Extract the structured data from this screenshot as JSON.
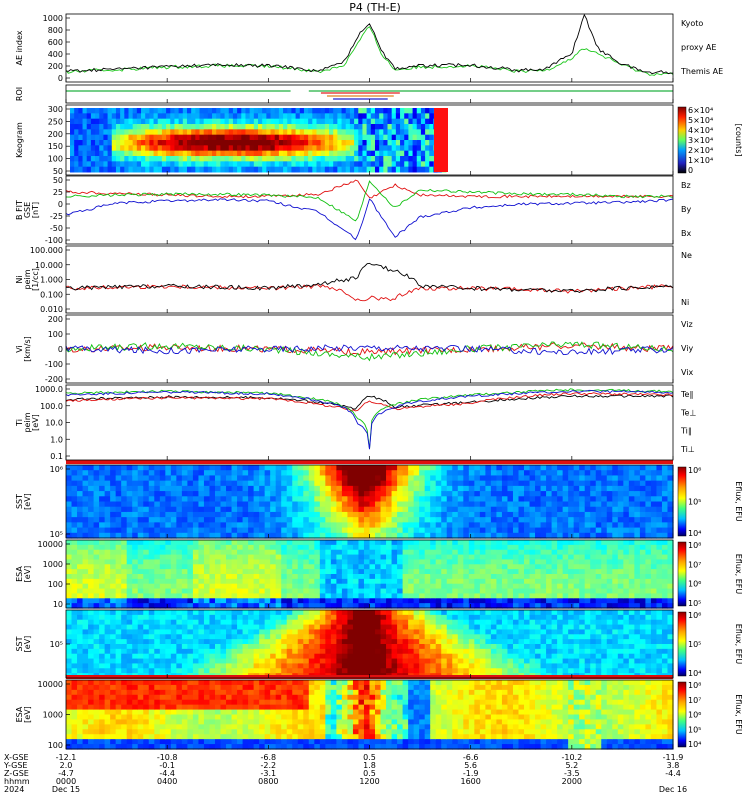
{
  "title": "P4 (TH-E)",
  "colors": {
    "kyoto": "#1ec81e",
    "themis": "#000000",
    "bz": "#e01010",
    "by": "#10c010",
    "bx": "#1010d0",
    "red": "#e01010",
    "green": "#10c010",
    "blue": "#1010d0"
  },
  "panels": [
    {
      "key": "ae",
      "ylabel": [
        "AE index"
      ],
      "ticks": [
        "1000",
        "800",
        "600",
        "400",
        "200",
        "0"
      ],
      "right": [
        {
          "text": "Kyoto",
          "color": "#1ec81e"
        },
        {
          "text": "proxy AE",
          "color": "#1ec81e"
        },
        {
          "text": "Themis AE",
          "color": "#000000"
        }
      ]
    },
    {
      "key": "roi",
      "ylabel": [
        "ROI"
      ],
      "ticks": [],
      "right": []
    },
    {
      "key": "keogram",
      "ylabel": [
        "Keogram"
      ],
      "ticks": [
        "300",
        "250",
        "200",
        "150",
        "100",
        "50"
      ],
      "right": []
    },
    {
      "key": "b",
      "ylabel": [
        "B FIT",
        "GSE",
        "[nT]"
      ],
      "ticks": [
        "50",
        "25",
        "0",
        "-25",
        "-50",
        "-100"
      ],
      "right": [
        {
          "text": "Bz",
          "color": "#e01010"
        },
        {
          "text": "By",
          "color": "#10c010"
        },
        {
          "text": "Bx",
          "color": "#1010d0"
        }
      ]
    },
    {
      "key": "n",
      "ylabel": [
        "Ni",
        "peim",
        "[1/cc]"
      ],
      "ticks": [
        "100.000",
        "10.000",
        "1.000",
        "0.100",
        "0.010"
      ],
      "right": [
        {
          "text": "Ne",
          "color": "#e01010"
        },
        {
          "text": "Ni",
          "color": "#000000"
        }
      ]
    },
    {
      "key": "v",
      "ylabel": [
        "Vi",
        "[km/s]"
      ],
      "ticks": [
        "200",
        "100",
        "0",
        "-100",
        "-200"
      ],
      "right": [
        {
          "text": "Viz",
          "color": "#e01010"
        },
        {
          "text": "Viy",
          "color": "#10c010"
        },
        {
          "text": "Vix",
          "color": "#1010d0"
        }
      ]
    },
    {
      "key": "t",
      "ylabel": [
        "Ti",
        "peim",
        "[eV]"
      ],
      "ticks": [
        "1000.0",
        "100.0",
        "10.0",
        "1.0",
        "0.1"
      ],
      "right": [
        {
          "text": "Te∥",
          "color": "#000000"
        },
        {
          "text": "Te⊥",
          "color": "#e01010"
        },
        {
          "text": "Ti∥",
          "color": "#10c010"
        },
        {
          "text": "Ti⊥",
          "color": "#1010d0"
        }
      ]
    },
    {
      "key": "sst_e",
      "ylabel": [
        "SST",
        "[eV]"
      ],
      "ticks": [
        "10⁶",
        "10⁵"
      ],
      "right": []
    },
    {
      "key": "esa_e",
      "ylabel": [
        "ESA",
        "[eV]"
      ],
      "ticks": [
        "10000",
        "1000",
        "100",
        "10"
      ],
      "right": []
    },
    {
      "key": "sst_i",
      "ylabel": [
        "SST",
        "[eV]"
      ],
      "ticks": [
        "10⁵"
      ],
      "right": []
    },
    {
      "key": "esa_i",
      "ylabel": [
        "ESA",
        "[eV]"
      ],
      "ticks": [
        "10000",
        "1000",
        "100"
      ],
      "right": []
    }
  ],
  "colorbars": [
    {
      "key": "keogram",
      "label": "[counts]",
      "ticks": [
        "6×10⁴",
        "5×10⁴",
        "4×10⁴",
        "3×10⁴",
        "2×10⁴",
        "1×10⁴",
        "0"
      ]
    },
    {
      "key": "sst_e",
      "label": "Eflux, EFU",
      "ticks": [
        "10⁶",
        "10⁵",
        "10⁴"
      ]
    },
    {
      "key": "esa_e",
      "label": "Eflux, EFU",
      "ticks": [
        "10⁸",
        "10⁷",
        "10⁶",
        "10⁵"
      ]
    },
    {
      "key": "sst_i",
      "label": "Eflux, EFU",
      "ticks": [
        "10⁶",
        "10⁵",
        "10⁴"
      ]
    },
    {
      "key": "esa_i",
      "label": "Eflux, EFU",
      "ticks": [
        "10⁸",
        "10⁷",
        "10⁶",
        "10⁵",
        "10⁴"
      ]
    }
  ],
  "bottom_axis": {
    "row_labels": [
      "X-GSE",
      "Y-GSE",
      "Z-GSE",
      "hhmm",
      "2024"
    ],
    "columns": [
      {
        "vals": [
          "-12.1",
          "2.0",
          "-4.7",
          "0000",
          "Dec 15"
        ]
      },
      {
        "vals": [
          "-10.8",
          "-0.1",
          "-4.4",
          "0400",
          ""
        ]
      },
      {
        "vals": [
          "-6.8",
          "-2.2",
          "-3.1",
          "0800",
          ""
        ]
      },
      {
        "vals": [
          "0.5",
          "1.8",
          "0.5",
          "1200",
          ""
        ]
      },
      {
        "vals": [
          "-6.6",
          "5.6",
          "-1.9",
          "1600",
          ""
        ]
      },
      {
        "vals": [
          "-10.2",
          "5.2",
          "-3.5",
          "2000",
          ""
        ]
      },
      {
        "vals": [
          "-11.9",
          "3.8",
          "-4.4",
          "",
          "Dec 16"
        ]
      }
    ]
  },
  "chart_data": [
    {
      "type": "line",
      "title": "P4 (TH-E)",
      "ylabel": "AE index",
      "ylim": [
        0,
        1000
      ],
      "x": [
        "0000",
        "0200",
        "0400",
        "0600",
        "0800",
        "0900",
        "1000",
        "1100",
        "1130",
        "1200",
        "1230",
        "1300",
        "1400",
        "1600",
        "1800",
        "1900",
        "2000",
        "2030",
        "2100",
        "2200",
        "2300",
        "2400"
      ],
      "series": [
        {
          "name": "Kyoto proxy AE",
          "values": [
            150,
            180,
            220,
            240,
            230,
            200,
            150,
            250,
            550,
            820,
            400,
            180,
            220,
            240,
            150,
            180,
            350,
            500,
            420,
            250,
            120,
            120
          ]
        },
        {
          "name": "Themis AE",
          "values": [
            160,
            190,
            230,
            250,
            240,
            210,
            160,
            300,
            650,
            880,
            450,
            200,
            240,
            250,
            170,
            200,
            420,
            1000,
            500,
            260,
            140,
            150
          ]
        }
      ]
    },
    {
      "type": "line",
      "ylabel": "B FIT GSE [nT]",
      "ylim": [
        -100,
        50
      ],
      "x": [
        "0000",
        "0200",
        "0400",
        "0600",
        "0800",
        "1000",
        "1130",
        "1200",
        "1300",
        "1400",
        "1600",
        "1800",
        "2000",
        "2200",
        "2400"
      ],
      "series": [
        {
          "name": "Bz",
          "values": [
            15,
            12,
            8,
            5,
            5,
            10,
            40,
            0,
            30,
            8,
            5,
            5,
            5,
            5,
            5
          ]
        },
        {
          "name": "By",
          "values": [
            5,
            8,
            10,
            10,
            8,
            2,
            -50,
            40,
            -20,
            20,
            15,
            10,
            10,
            5,
            5
          ]
        },
        {
          "name": "Bx",
          "values": [
            -35,
            -10,
            -5,
            -2,
            -5,
            -30,
            -90,
            0,
            -85,
            -40,
            -20,
            -12,
            -10,
            -8,
            -3
          ]
        }
      ]
    },
    {
      "type": "line",
      "ylabel": "Ni peim [1/cc]",
      "ylim": [
        0.01,
        100
      ],
      "x": [
        "0000",
        "0400",
        "0800",
        "1000",
        "1130",
        "1200",
        "1300",
        "1400",
        "1600",
        "2000",
        "2400"
      ],
      "series": [
        {
          "name": "Ne",
          "values": [
            0.3,
            0.4,
            0.3,
            0.4,
            0.05,
            0.08,
            0.06,
            0.3,
            0.3,
            0.2,
            0.4
          ]
        },
        {
          "name": "Ni",
          "values": [
            0.3,
            0.4,
            0.3,
            0.5,
            1.2,
            8.0,
            3.0,
            0.4,
            0.3,
            0.2,
            0.4
          ]
        }
      ]
    },
    {
      "type": "line",
      "ylabel": "Vi [km/s]",
      "ylim": [
        -200,
        200
      ],
      "x": [
        "0000",
        "0400",
        "0800",
        "1200",
        "1600",
        "2000",
        "2400"
      ],
      "series": [
        {
          "name": "Viz",
          "values": [
            0,
            10,
            0,
            -20,
            0,
            20,
            0
          ]
        },
        {
          "name": "Viy",
          "values": [
            0,
            20,
            0,
            -50,
            0,
            30,
            0
          ]
        },
        {
          "name": "Vix",
          "values": [
            0,
            -10,
            0,
            10,
            0,
            -20,
            0
          ]
        }
      ]
    },
    {
      "type": "line",
      "ylabel": "Ti peim [eV]",
      "ylim": [
        0.1,
        5000
      ],
      "x": [
        "0000",
        "0400",
        "0800",
        "1000",
        "1130",
        "1200",
        "1300",
        "1600",
        "2000",
        "2400"
      ],
      "series": [
        {
          "name": "Te∥",
          "values": [
            600,
            900,
            800,
            400,
            150,
            1000,
            200,
            400,
            1000,
            1000
          ]
        },
        {
          "name": "Te⊥",
          "values": [
            500,
            800,
            700,
            300,
            100,
            500,
            150,
            350,
            1500,
            1200
          ]
        },
        {
          "name": "Ti∥",
          "values": [
            1500,
            2000,
            1500,
            600,
            40,
            0.5,
            300,
            1200,
            2500,
            2000
          ]
        },
        {
          "name": "Ti⊥",
          "values": [
            1200,
            1800,
            1400,
            500,
            20,
            0.5,
            200,
            1000,
            2000,
            1800
          ]
        }
      ]
    }
  ]
}
